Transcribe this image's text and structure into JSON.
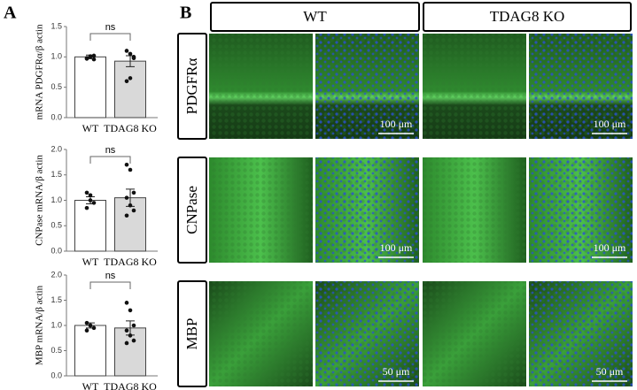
{
  "panel_labels": [
    "A",
    "B"
  ],
  "chart_data": [
    {
      "type": "bar",
      "ylabel": "mRNA PDGFRα/β actin",
      "categories": [
        "WT",
        "TDAG8 KO"
      ],
      "values": [
        1.0,
        0.93
      ],
      "errors": [
        0.03,
        0.09
      ],
      "points": [
        [
          0.97,
          1.0,
          1.02,
          0.98,
          1.01,
          0.96
        ],
        [
          1.1,
          1.05,
          1.0,
          0.6,
          0.65,
          0.98
        ]
      ],
      "colors": [
        "#ffffff",
        "#d9d9d9"
      ],
      "ylim": [
        0,
        1.5
      ],
      "yticks": [
        {
          "value": 0,
          "label": "0.0"
        },
        {
          "value": 0.5,
          "label": "0.5"
        },
        {
          "value": 1,
          "label": "1.0"
        },
        {
          "value": 1.5,
          "label": "1.5"
        }
      ],
      "annotation": "ns"
    },
    {
      "type": "bar",
      "ylabel": "CNPase mRNA/β actin",
      "categories": [
        "WT",
        "TDAG8 KO"
      ],
      "values": [
        1.0,
        1.05
      ],
      "errors": [
        0.07,
        0.17
      ],
      "points": [
        [
          1.15,
          1.0,
          0.95,
          0.85,
          1.1
        ],
        [
          1.7,
          1.6,
          1.15,
          1.05,
          0.9,
          0.8,
          0.7
        ]
      ],
      "colors": [
        "#ffffff",
        "#d9d9d9"
      ],
      "ylim": [
        0,
        2
      ],
      "yticks": [
        {
          "value": 0,
          "label": "0.0"
        },
        {
          "value": 0.5,
          "label": "0.5"
        },
        {
          "value": 1,
          "label": "1.0"
        },
        {
          "value": 1.5,
          "label": "1.5"
        },
        {
          "value": 2,
          "label": "2.0"
        }
      ],
      "annotation": "ns"
    },
    {
      "type": "bar",
      "ylabel": "MBP mRNA/β actin",
      "categories": [
        "WT",
        "TDAG8 KO"
      ],
      "values": [
        1.0,
        0.95
      ],
      "errors": [
        0.05,
        0.14
      ],
      "points": [
        [
          1.05,
          1.0,
          0.95,
          0.9,
          1.0
        ],
        [
          1.45,
          1.3,
          1.0,
          0.9,
          0.8,
          0.7,
          0.65
        ]
      ],
      "colors": [
        "#ffffff",
        "#d9d9d9"
      ],
      "ylim": [
        0,
        2
      ],
      "yticks": [
        {
          "value": 0,
          "label": "0.0"
        },
        {
          "value": 0.5,
          "label": "0.5"
        },
        {
          "value": 1,
          "label": "1.0"
        },
        {
          "value": 1.5,
          "label": "1.5"
        },
        {
          "value": 2,
          "label": "2.0"
        }
      ],
      "annotation": "ns"
    }
  ],
  "column_headers": [
    "WT",
    "TDAG8 KO"
  ],
  "row_labels": [
    "PDGFRα",
    "CNPase",
    "MBP"
  ],
  "scale_bars": [
    [
      "100 μm",
      "100 μm"
    ],
    [
      "100 μm",
      "100 μm"
    ],
    [
      "50 μm",
      "50 μm"
    ]
  ]
}
